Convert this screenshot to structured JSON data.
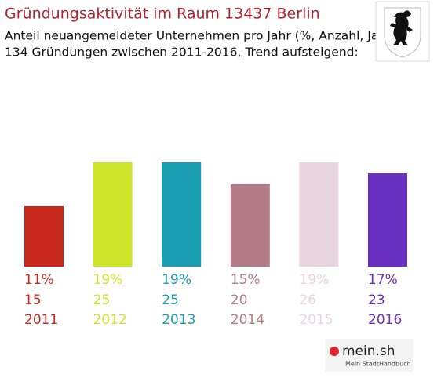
{
  "chart_data": {
    "type": "bar",
    "title": "Gründungsaktivität im Raum 13437 Berlin",
    "subtitle": [
      "Anteil neuangemeldeter Unternehmen pro Jahr (%, Anzahl, Jahr)",
      "134 Gründungen zwischen 2011-2016, Trend aufsteigend:"
    ],
    "categories": [
      "2011",
      "2012",
      "2013",
      "2014",
      "2015",
      "2016"
    ],
    "values": [
      11,
      19,
      19,
      15,
      19,
      17
    ],
    "value_labels": [
      "11%",
      "19%",
      "19%",
      "15%",
      "19%",
      "17%"
    ],
    "counts": [
      15,
      25,
      25,
      20,
      26,
      23
    ],
    "colors": [
      "#c8281c",
      "#cde62b",
      "#1a9cb1",
      "#b27b86",
      "#e7d4df",
      "#6a2fc3"
    ]
  },
  "logo": {
    "name": "mein.sh",
    "tagline": "Mein StadtHandbuch"
  }
}
